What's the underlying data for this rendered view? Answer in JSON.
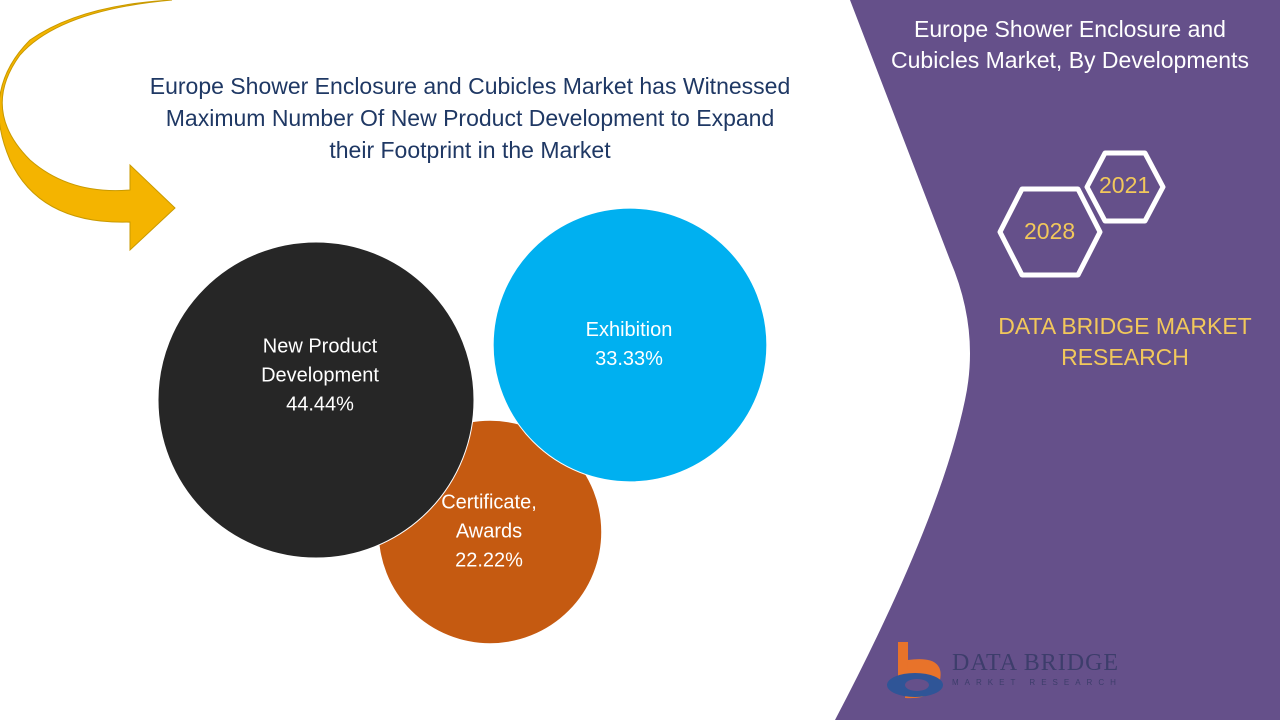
{
  "headline": {
    "lines": [
      "Europe Shower Enclosure and Cubicles Market has Witnessed",
      "Maximum Number Of New Product Development to Expand",
      "their Footprint in the Market"
    ]
  },
  "side_panel": {
    "title_lines": [
      "Europe Shower Enclosure and",
      "Cubicles Market, By Developments"
    ],
    "year_start": "2021",
    "year_end": "2028",
    "brand_lines": [
      "DATA BRIDGE MARKET",
      "RESEARCH"
    ],
    "logo_text": "DATA BRIDGE",
    "logo_subtext": "MARKET RESEARCH",
    "bg_color": "#65508a",
    "accent_color": "#f2c85b"
  },
  "chart_data": {
    "type": "bubble",
    "categories": [
      "New Product Development",
      "Exhibition",
      "Certificate, Awards"
    ],
    "values": [
      44.44,
      33.33,
      22.22
    ],
    "labels": [
      [
        "New Product",
        "Development",
        "44.44%"
      ],
      [
        "Exhibition",
        "33.33%"
      ],
      [
        "Certificate,",
        "Awards",
        "22.22%"
      ]
    ],
    "colors": [
      "#262626",
      "#00b0f0",
      "#c55a11"
    ]
  }
}
